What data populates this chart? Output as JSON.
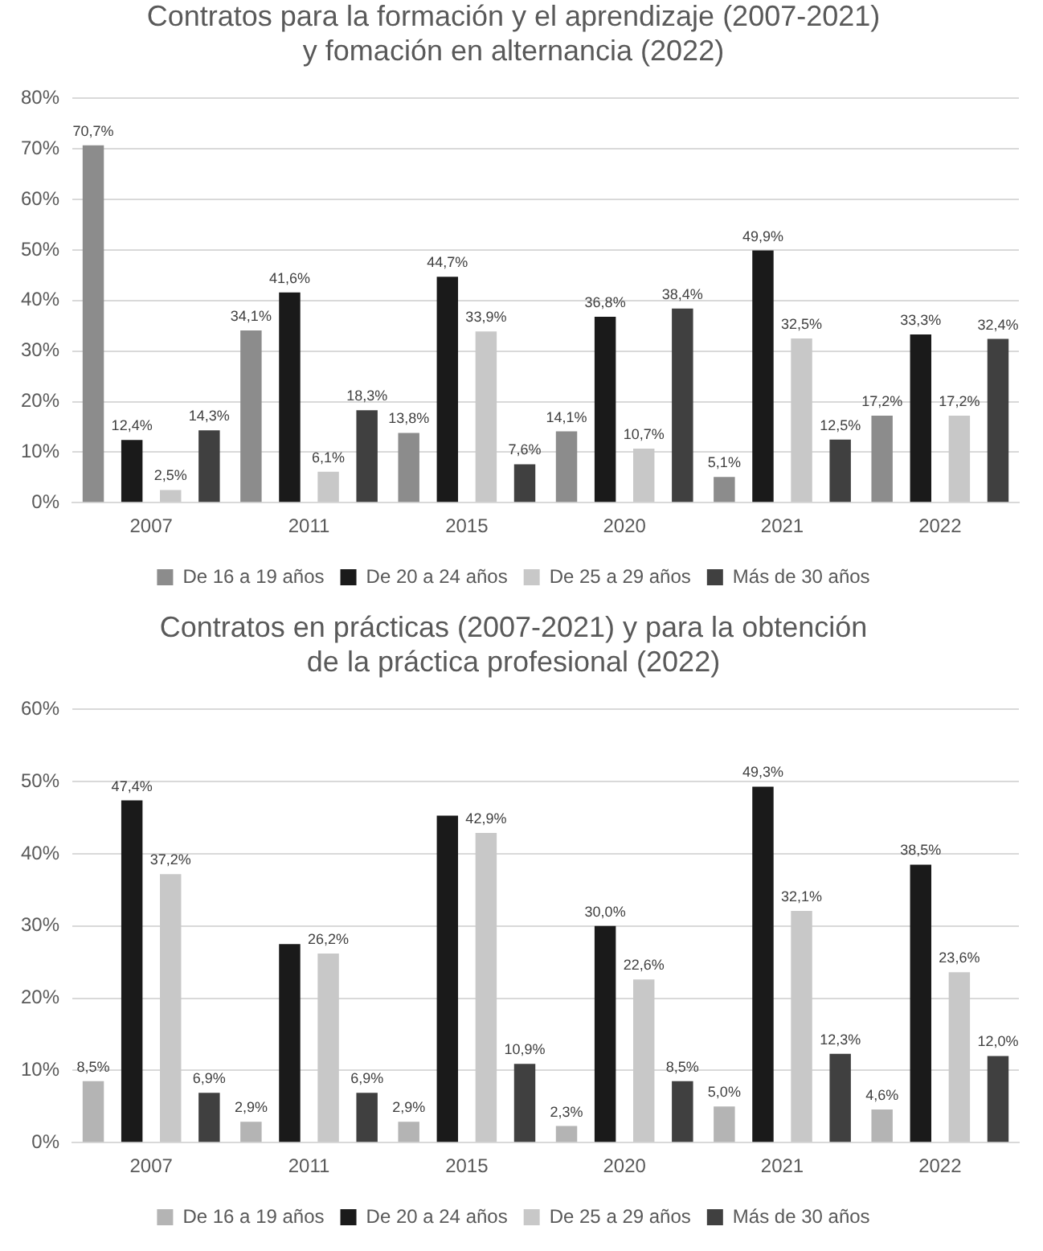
{
  "chart_data": [
    {
      "type": "bar",
      "title": "Contratos para la formación y el aprendizaje (2007-2021) y fomación en alternancia (2022)",
      "categories": [
        "2007",
        "2011",
        "2015",
        "2020",
        "2021",
        "2022"
      ],
      "ylim": [
        0,
        80
      ],
      "yticks": [
        {
          "value": 0,
          "label": "0%"
        },
        {
          "value": 10,
          "label": "10%"
        },
        {
          "value": 20,
          "label": "20%"
        },
        {
          "value": 30,
          "label": "30%"
        },
        {
          "value": 40,
          "label": "40%"
        },
        {
          "value": 50,
          "label": "50%"
        },
        {
          "value": 60,
          "label": "60%"
        },
        {
          "value": 70,
          "label": "70%"
        },
        {
          "value": 80,
          "label": "80%"
        }
      ],
      "grid": "y",
      "legend": "bottom",
      "series": [
        {
          "name": "De 16 a 19 años",
          "color": "#8c8c8c",
          "values": [
            70.7,
            34.1,
            13.8,
            14.1,
            5.1,
            17.2
          ],
          "value_labels": [
            "70,7%",
            "34,1%",
            "13,8%",
            "14,1%",
            "5,1%",
            "17,2%"
          ]
        },
        {
          "name": "De 20 a 24 años",
          "color": "#1a1a1a",
          "values": [
            12.4,
            41.6,
            44.7,
            36.8,
            49.9,
            33.3
          ],
          "value_labels": [
            "12,4%",
            "41,6%",
            "44,7%",
            "36,8%",
            "49,9%",
            "33,3%"
          ]
        },
        {
          "name": "De 25 a 29 años",
          "color": "#c8c8c8",
          "values": [
            2.5,
            6.1,
            33.9,
            10.7,
            32.5,
            17.2
          ],
          "value_labels": [
            "2,5%",
            "6,1%",
            "33,9%",
            "10,7%",
            "32,5%",
            "17,2%"
          ]
        },
        {
          "name": "Más de 30 años",
          "color": "#404040",
          "values": [
            14.3,
            18.3,
            7.6,
            38.4,
            12.5,
            32.4
          ],
          "value_labels": [
            "14,3%",
            "18,3%",
            "7,6%",
            "38,4%",
            "12,5%",
            "32,4%"
          ]
        }
      ]
    },
    {
      "type": "bar",
      "title": "Contratos en prácticas (2007-2021) y para la obtención de la práctica profesional (2022)",
      "categories": [
        "2007",
        "2011",
        "2015",
        "2020",
        "2021",
        "2022"
      ],
      "ylim": [
        0,
        60
      ],
      "yticks": [
        {
          "value": 0,
          "label": "0%"
        },
        {
          "value": 10,
          "label": "10%"
        },
        {
          "value": 20,
          "label": "20%"
        },
        {
          "value": 30,
          "label": "30%"
        },
        {
          "value": 40,
          "label": "40%"
        },
        {
          "value": 50,
          "label": "50%"
        },
        {
          "value": 60,
          "label": "60%"
        }
      ],
      "grid": "y",
      "legend": "bottom",
      "series": [
        {
          "name": "De 16 a 19 años",
          "color": "#b4b4b4",
          "values": [
            8.5,
            2.9,
            2.9,
            2.3,
            5.0,
            4.6
          ],
          "value_labels": [
            "8,5%",
            "2,9%",
            "2,9%",
            "2,3%",
            "5,0%",
            "4,6%"
          ]
        },
        {
          "name": "De 20 a 24 años",
          "color": "#1a1a1a",
          "values": [
            47.4,
            27.5,
            45.3,
            30.0,
            49.3,
            38.5
          ],
          "value_labels": [
            "47,4%",
            null,
            null,
            "30,0%",
            "49,3%",
            "38,5%"
          ]
        },
        {
          "name": "De 25 a 29 años",
          "color": "#c8c8c8",
          "values": [
            37.2,
            26.2,
            42.9,
            22.6,
            32.1,
            23.6
          ],
          "value_labels": [
            "37,2%",
            "26,2%",
            "42,9%",
            "22,6%",
            "32,1%",
            "23,6%"
          ]
        },
        {
          "name": "Más de 30 años",
          "color": "#404040",
          "values": [
            6.9,
            6.9,
            10.9,
            8.5,
            12.3,
            12.0
          ],
          "value_labels": [
            "6,9%",
            "6,9%",
            "10,9%",
            "8,5%",
            "12,3%",
            "12,0%"
          ]
        }
      ]
    }
  ]
}
